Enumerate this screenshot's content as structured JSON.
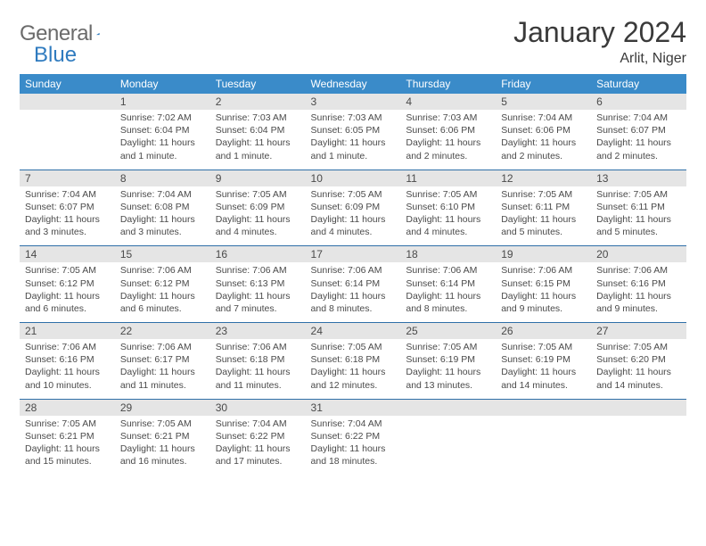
{
  "logo": {
    "text1": "General",
    "text2": "Blue"
  },
  "title": "January 2024",
  "location": "Arlit, Niger",
  "colors": {
    "header_bg": "#3a8bc9",
    "header_fg": "#ffffff",
    "daynum_bg": "#e5e5e5",
    "text": "#4a4a4a",
    "rule": "#2f6fa8",
    "logo_gray": "#6b6b6b",
    "logo_blue": "#2f7bbf"
  },
  "dow": [
    "Sunday",
    "Monday",
    "Tuesday",
    "Wednesday",
    "Thursday",
    "Friday",
    "Saturday"
  ],
  "weeks": [
    {
      "nums": [
        "",
        "1",
        "2",
        "3",
        "4",
        "5",
        "6"
      ],
      "cells": [
        null,
        {
          "sunrise": "7:02 AM",
          "sunset": "6:04 PM",
          "daylight": "11 hours and 1 minute."
        },
        {
          "sunrise": "7:03 AM",
          "sunset": "6:04 PM",
          "daylight": "11 hours and 1 minute."
        },
        {
          "sunrise": "7:03 AM",
          "sunset": "6:05 PM",
          "daylight": "11 hours and 1 minute."
        },
        {
          "sunrise": "7:03 AM",
          "sunset": "6:06 PM",
          "daylight": "11 hours and 2 minutes."
        },
        {
          "sunrise": "7:04 AM",
          "sunset": "6:06 PM",
          "daylight": "11 hours and 2 minutes."
        },
        {
          "sunrise": "7:04 AM",
          "sunset": "6:07 PM",
          "daylight": "11 hours and 2 minutes."
        }
      ]
    },
    {
      "nums": [
        "7",
        "8",
        "9",
        "10",
        "11",
        "12",
        "13"
      ],
      "cells": [
        {
          "sunrise": "7:04 AM",
          "sunset": "6:07 PM",
          "daylight": "11 hours and 3 minutes."
        },
        {
          "sunrise": "7:04 AM",
          "sunset": "6:08 PM",
          "daylight": "11 hours and 3 minutes."
        },
        {
          "sunrise": "7:05 AM",
          "sunset": "6:09 PM",
          "daylight": "11 hours and 4 minutes."
        },
        {
          "sunrise": "7:05 AM",
          "sunset": "6:09 PM",
          "daylight": "11 hours and 4 minutes."
        },
        {
          "sunrise": "7:05 AM",
          "sunset": "6:10 PM",
          "daylight": "11 hours and 4 minutes."
        },
        {
          "sunrise": "7:05 AM",
          "sunset": "6:11 PM",
          "daylight": "11 hours and 5 minutes."
        },
        {
          "sunrise": "7:05 AM",
          "sunset": "6:11 PM",
          "daylight": "11 hours and 5 minutes."
        }
      ]
    },
    {
      "nums": [
        "14",
        "15",
        "16",
        "17",
        "18",
        "19",
        "20"
      ],
      "cells": [
        {
          "sunrise": "7:05 AM",
          "sunset": "6:12 PM",
          "daylight": "11 hours and 6 minutes."
        },
        {
          "sunrise": "7:06 AM",
          "sunset": "6:12 PM",
          "daylight": "11 hours and 6 minutes."
        },
        {
          "sunrise": "7:06 AM",
          "sunset": "6:13 PM",
          "daylight": "11 hours and 7 minutes."
        },
        {
          "sunrise": "7:06 AM",
          "sunset": "6:14 PM",
          "daylight": "11 hours and 8 minutes."
        },
        {
          "sunrise": "7:06 AM",
          "sunset": "6:14 PM",
          "daylight": "11 hours and 8 minutes."
        },
        {
          "sunrise": "7:06 AM",
          "sunset": "6:15 PM",
          "daylight": "11 hours and 9 minutes."
        },
        {
          "sunrise": "7:06 AM",
          "sunset": "6:16 PM",
          "daylight": "11 hours and 9 minutes."
        }
      ]
    },
    {
      "nums": [
        "21",
        "22",
        "23",
        "24",
        "25",
        "26",
        "27"
      ],
      "cells": [
        {
          "sunrise": "7:06 AM",
          "sunset": "6:16 PM",
          "daylight": "11 hours and 10 minutes."
        },
        {
          "sunrise": "7:06 AM",
          "sunset": "6:17 PM",
          "daylight": "11 hours and 11 minutes."
        },
        {
          "sunrise": "7:06 AM",
          "sunset": "6:18 PM",
          "daylight": "11 hours and 11 minutes."
        },
        {
          "sunrise": "7:05 AM",
          "sunset": "6:18 PM",
          "daylight": "11 hours and 12 minutes."
        },
        {
          "sunrise": "7:05 AM",
          "sunset": "6:19 PM",
          "daylight": "11 hours and 13 minutes."
        },
        {
          "sunrise": "7:05 AM",
          "sunset": "6:19 PM",
          "daylight": "11 hours and 14 minutes."
        },
        {
          "sunrise": "7:05 AM",
          "sunset": "6:20 PM",
          "daylight": "11 hours and 14 minutes."
        }
      ]
    },
    {
      "nums": [
        "28",
        "29",
        "30",
        "31",
        "",
        "",
        ""
      ],
      "cells": [
        {
          "sunrise": "7:05 AM",
          "sunset": "6:21 PM",
          "daylight": "11 hours and 15 minutes."
        },
        {
          "sunrise": "7:05 AM",
          "sunset": "6:21 PM",
          "daylight": "11 hours and 16 minutes."
        },
        {
          "sunrise": "7:04 AM",
          "sunset": "6:22 PM",
          "daylight": "11 hours and 17 minutes."
        },
        {
          "sunrise": "7:04 AM",
          "sunset": "6:22 PM",
          "daylight": "11 hours and 18 minutes."
        },
        null,
        null,
        null
      ]
    }
  ],
  "labels": {
    "sunrise": "Sunrise:",
    "sunset": "Sunset:",
    "daylight": "Daylight:"
  }
}
